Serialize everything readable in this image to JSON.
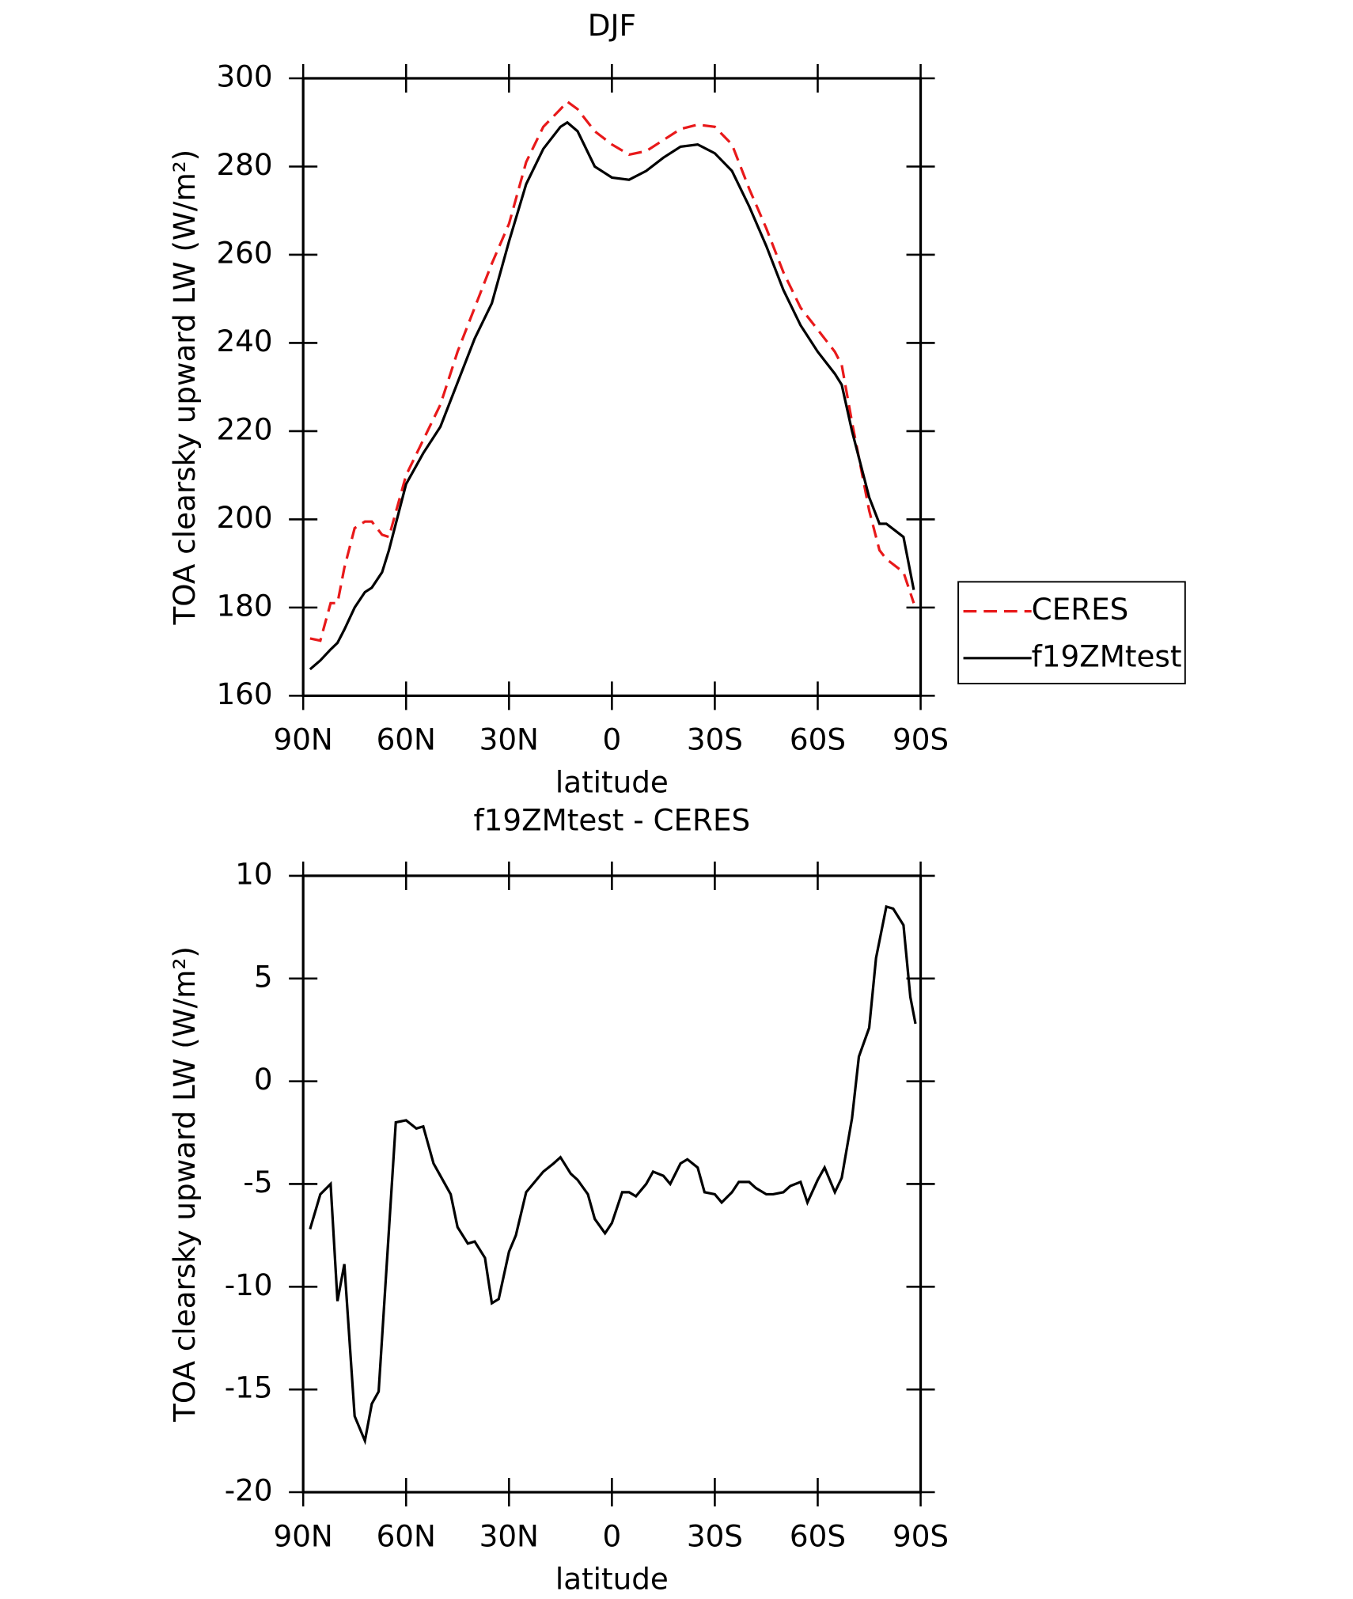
{
  "chart_data": [
    {
      "type": "line",
      "title": "DJF",
      "x_label": "latitude",
      "y_label": "TOA clearsky upward LW (W/m²)",
      "x": [
        88,
        85,
        82,
        80,
        78,
        75,
        72,
        70,
        67,
        65,
        60,
        55,
        50,
        45,
        40,
        35,
        30,
        25,
        20,
        15,
        13,
        10,
        5,
        0,
        -5,
        -10,
        -15,
        -20,
        -25,
        -30,
        -35,
        -40,
        -45,
        -50,
        -55,
        -60,
        -65,
        -67,
        -70,
        -75,
        -78,
        -80,
        -85,
        -88
      ],
      "series": [
        {
          "name": "CERES",
          "color": "#e8191a",
          "line_style": "dashed",
          "values": [
            173,
            172.5,
            181,
            181,
            189,
            198,
            199.5,
            199.5,
            196.5,
            196,
            210,
            218,
            226,
            238,
            248,
            258,
            267,
            281,
            289,
            293,
            294.7,
            293,
            288,
            285,
            282.7,
            283.5,
            286,
            288.5,
            289.5,
            289,
            285,
            275,
            266,
            256,
            248,
            243,
            238,
            235,
            222,
            202,
            193,
            191,
            188,
            181
          ]
        },
        {
          "name": "f19ZMtest",
          "color": "#000000",
          "line_style": "solid",
          "values": [
            166,
            168,
            170.5,
            172,
            175,
            180,
            183.5,
            184.5,
            188,
            193,
            208,
            215,
            221,
            231,
            241,
            249,
            263,
            276,
            284,
            289,
            290,
            288,
            280,
            277.5,
            277,
            279,
            282,
            284.5,
            285,
            283,
            279,
            271,
            262,
            252,
            244,
            238,
            233,
            230.5,
            220,
            205,
            199,
            199,
            196,
            184
          ]
        }
      ],
      "xlim": [
        90,
        -90
      ],
      "xticks": [
        {
          "value": 90,
          "label": "90N"
        },
        {
          "value": 60,
          "label": "60N"
        },
        {
          "value": 30,
          "label": "30N"
        },
        0,
        {
          "value": -30,
          "label": "30S"
        },
        {
          "value": -60,
          "label": "60S"
        },
        {
          "value": -90,
          "label": "90S"
        }
      ],
      "ylim": [
        160,
        300
      ],
      "yticks": [
        160,
        180,
        200,
        220,
        240,
        260,
        280,
        300
      ],
      "legend": true
    },
    {
      "type": "line",
      "title": "f19ZMtest - CERES",
      "x_label": "latitude",
      "y_label": "TOA clearsky upward LW (W/m²)",
      "x": [
        88,
        85,
        82,
        80,
        78,
        75,
        72,
        70,
        68,
        63,
        60,
        57,
        55,
        52,
        50,
        47,
        45,
        42,
        40,
        37,
        35,
        33,
        30,
        28,
        25,
        22,
        20,
        17,
        15,
        12,
        10,
        7,
        5,
        2,
        0,
        -3,
        -5,
        -7,
        -10,
        -12,
        -15,
        -17,
        -20,
        -22,
        -25,
        -27,
        -30,
        -32,
        -35,
        -37,
        -40,
        -42,
        -45,
        -47,
        -50,
        -52,
        -55,
        -57,
        -60,
        -62,
        -65,
        -67,
        -70,
        -72,
        -75,
        -77,
        -80,
        -82,
        -85,
        -87,
        -88.5
      ],
      "series": [
        {
          "color": "#000000",
          "line_style": "solid",
          "values": [
            -7.2,
            -5.5,
            -5,
            -10.7,
            -8.9,
            -16.3,
            -17.5,
            -15.7,
            -15.1,
            -2,
            -1.9,
            -2.3,
            -2.2,
            -4,
            -4.6,
            -5.5,
            -7.1,
            -7.9,
            -7.8,
            -8.6,
            -10.8,
            -10.6,
            -8.3,
            -7.5,
            -5.4,
            -4.8,
            -4.4,
            -4,
            -3.7,
            -4.5,
            -4.8,
            -5.5,
            -6.7,
            -7.4,
            -6.9,
            -5.4,
            -5.4,
            -5.6,
            -5,
            -4.4,
            -4.6,
            -5,
            -4,
            -3.8,
            -4.2,
            -5.4,
            -5.5,
            -5.9,
            -5.4,
            -4.9,
            -4.9,
            -5.2,
            -5.5,
            -5.5,
            -5.4,
            -5.1,
            -4.9,
            -5.9,
            -4.8,
            -4.2,
            -5.4,
            -4.7,
            -1.8,
            1.2,
            2.6,
            6,
            8.5,
            8.4,
            7.6,
            4.1,
            2.8
          ]
        }
      ],
      "xlim": [
        90,
        -90
      ],
      "xticks": [
        {
          "value": 90,
          "label": "90N"
        },
        {
          "value": 60,
          "label": "60N"
        },
        {
          "value": 30,
          "label": "30N"
        },
        0,
        {
          "value": -30,
          "label": "30S"
        },
        {
          "value": -60,
          "label": "60S"
        },
        {
          "value": -90,
          "label": "90S"
        }
      ],
      "ylim": [
        -20,
        10
      ],
      "yticks": [
        -20,
        -15,
        -10,
        -5,
        0,
        5,
        10
      ]
    }
  ]
}
